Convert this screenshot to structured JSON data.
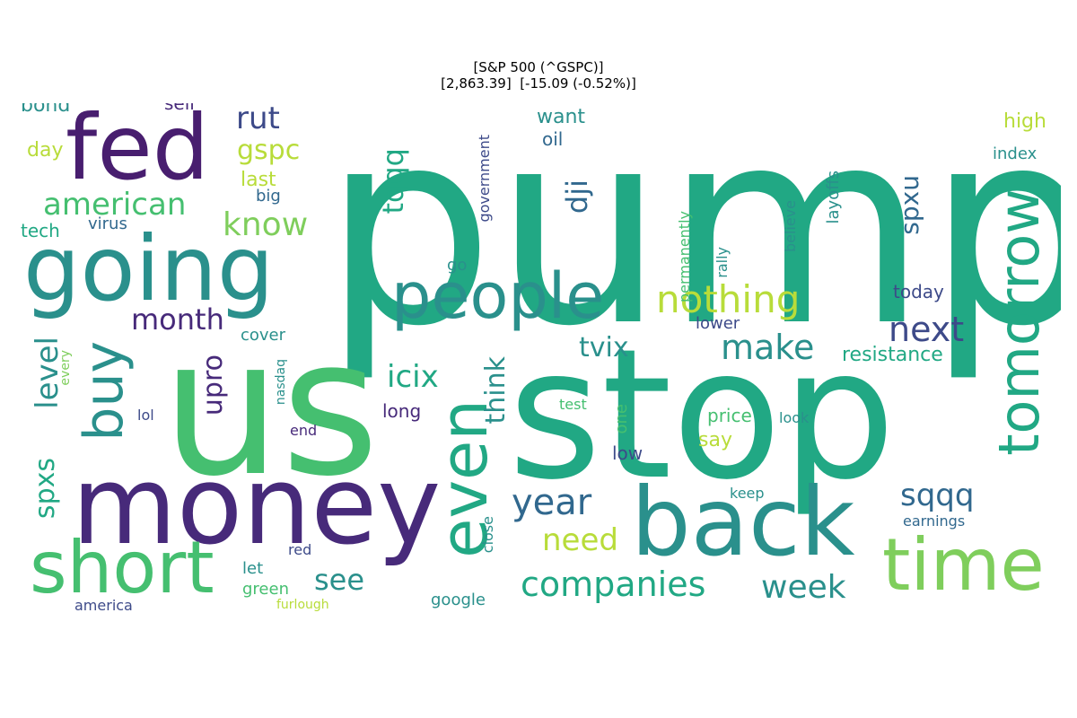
{
  "title": {
    "line1": "[S&P 500 (^GSPC)]",
    "line2": "[2,863.39]  [-15.09 (-0.52%)]"
  },
  "palette": {
    "teal_green": "#21a884",
    "green": "#45bf70",
    "light_green": "#7fce5c",
    "lime": "#b8dc3a",
    "teal": "#2a908c",
    "blue": "#31688e",
    "slate": "#3d4a89",
    "purple": "#472a7a",
    "dark_purple": "#481e6f"
  },
  "words": [
    "pump",
    "us",
    "stop",
    "money",
    "back",
    "fed",
    "going",
    "short",
    "time",
    "tomorrow",
    "even",
    "people",
    "buy",
    "companies",
    "nothing",
    "level",
    "spxs",
    "year",
    "make",
    "next",
    "tqqq",
    "dji",
    "gspc",
    "rut",
    "american",
    "know",
    "month",
    "upro",
    "icix",
    "think",
    "tvix",
    "need",
    "sqqq",
    "week",
    "see",
    "spxu",
    "resistance",
    "today",
    "government",
    "layoffs",
    "index",
    "high",
    "bond",
    "sell",
    "day",
    "tech",
    "virus",
    "last",
    "big",
    "oil",
    "want",
    "permanently",
    "rally",
    "believe",
    "cover",
    "lower",
    "price",
    "say",
    "keep",
    "close",
    "earnings",
    "google",
    "america",
    "let",
    "green",
    "red",
    "lol",
    "end",
    "long",
    "test",
    "look",
    "low",
    "one",
    "every",
    "nasdaq",
    "furlough",
    "go"
  ]
}
